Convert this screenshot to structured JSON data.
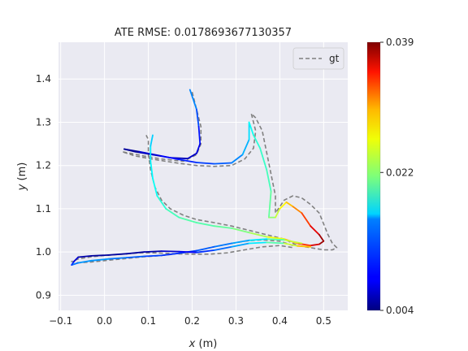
{
  "chart_data": {
    "type": "line",
    "title": "ATE RMSE: 0.0178693677130357",
    "xlabel": "x",
    "xlabel_unit": " (m)",
    "ylabel": "y",
    "ylabel_unit": " (m)",
    "xlim": [
      -0.105,
      0.555
    ],
    "ylim": [
      0.865,
      1.485
    ],
    "xticks": [
      -0.1,
      0.0,
      0.1,
      0.2,
      0.3,
      0.4,
      0.5
    ],
    "xtick_labels": [
      "−0.1",
      "0.0",
      "0.1",
      "0.2",
      "0.3",
      "0.4",
      "0.5"
    ],
    "yticks": [
      0.9,
      1.0,
      1.1,
      1.2,
      1.3,
      1.4
    ],
    "ytick_labels": [
      "0.9",
      "1.0",
      "1.1",
      "1.2",
      "1.3",
      "1.4"
    ],
    "grid": true,
    "legend": {
      "placement": "top-right",
      "entries": [
        "gt"
      ]
    },
    "colorbar": {
      "min": 0.004,
      "max": 0.039,
      "tick_labels": [
        "0.039",
        "0.022",
        "0.004"
      ],
      "tick_values": [
        0.039,
        0.022,
        0.004
      ],
      "colormap": "jet"
    },
    "colors": {
      "background": "#eaeaf2",
      "grid": "#ffffff",
      "gt": "#808080"
    },
    "series": [
      {
        "name": "gt",
        "style": "dashed",
        "points": [
          [
            0.2,
            1.37
          ],
          [
            0.21,
            1.33
          ],
          [
            0.22,
            1.29
          ],
          [
            0.22,
            1.25
          ],
          [
            0.21,
            1.225
          ],
          [
            0.18,
            1.21
          ],
          [
            0.13,
            1.215
          ],
          [
            0.09,
            1.222
          ],
          [
            0.06,
            1.228
          ],
          [
            0.04,
            1.232
          ],
          [
            0.07,
            1.222
          ],
          [
            0.12,
            1.213
          ],
          [
            0.17,
            1.205
          ],
          [
            0.21,
            1.2
          ],
          [
            0.25,
            1.198
          ],
          [
            0.29,
            1.2
          ],
          [
            0.32,
            1.215
          ],
          [
            0.34,
            1.24
          ],
          [
            0.345,
            1.28
          ],
          [
            0.335,
            1.32
          ],
          [
            0.345,
            1.31
          ],
          [
            0.36,
            1.28
          ],
          [
            0.37,
            1.23
          ],
          [
            0.38,
            1.18
          ],
          [
            0.39,
            1.13
          ],
          [
            0.39,
            1.09
          ],
          [
            0.4,
            1.105
          ],
          [
            0.41,
            1.12
          ],
          [
            0.43,
            1.13
          ],
          [
            0.45,
            1.125
          ],
          [
            0.47,
            1.11
          ],
          [
            0.49,
            1.09
          ],
          [
            0.5,
            1.065
          ],
          [
            0.51,
            1.04
          ],
          [
            0.52,
            1.02
          ],
          [
            0.53,
            1.01
          ],
          [
            0.52,
            1.005
          ],
          [
            0.5,
            1.005
          ],
          [
            0.47,
            1.01
          ],
          [
            0.44,
            1.015
          ],
          [
            0.41,
            1.03
          ],
          [
            0.37,
            1.04
          ],
          [
            0.33,
            1.05
          ],
          [
            0.29,
            1.06
          ],
          [
            0.25,
            1.068
          ],
          [
            0.21,
            1.075
          ],
          [
            0.18,
            1.085
          ],
          [
            0.15,
            1.1
          ],
          [
            0.13,
            1.12
          ],
          [
            0.115,
            1.15
          ],
          [
            0.105,
            1.19
          ],
          [
            0.1,
            1.225
          ],
          [
            0.1,
            1.26
          ],
          [
            0.095,
            1.27
          ]
        ]
      },
      {
        "name": "gt-lower",
        "style": "dashed",
        "points": [
          [
            0.43,
            1.015
          ],
          [
            0.4,
            1.025
          ],
          [
            0.36,
            1.028
          ],
          [
            0.32,
            1.025
          ],
          [
            0.28,
            1.018
          ],
          [
            0.24,
            1.01
          ],
          [
            0.2,
            1.0
          ],
          [
            0.17,
            0.997
          ],
          [
            0.15,
            0.994
          ],
          [
            0.12,
            0.991
          ],
          [
            0.09,
            0.989
          ],
          [
            0.06,
            0.986
          ],
          [
            0.03,
            0.983
          ],
          [
            0.0,
            0.98
          ],
          [
            -0.03,
            0.977
          ],
          [
            -0.06,
            0.975
          ],
          [
            -0.075,
            0.978
          ],
          [
            -0.06,
            0.984
          ],
          [
            -0.03,
            0.989
          ],
          [
            0.0,
            0.992
          ],
          [
            0.04,
            0.995
          ],
          [
            0.08,
            0.998
          ],
          [
            0.12,
            0.998
          ],
          [
            0.16,
            0.996
          ],
          [
            0.2,
            0.995
          ],
          [
            0.24,
            0.995
          ],
          [
            0.28,
            0.998
          ],
          [
            0.32,
            1.005
          ],
          [
            0.36,
            1.012
          ],
          [
            0.4,
            1.015
          ],
          [
            0.43,
            1.01
          ]
        ]
      },
      {
        "name": "estimate",
        "style": "colormap",
        "points": [
          [
            0.195,
            1.375,
            0.014
          ],
          [
            0.21,
            1.33,
            0.012
          ],
          [
            0.215,
            1.29,
            0.01
          ],
          [
            0.218,
            1.25,
            0.008
          ],
          [
            0.21,
            1.228,
            0.007
          ],
          [
            0.19,
            1.216,
            0.006
          ],
          [
            0.15,
            1.218,
            0.006
          ],
          [
            0.11,
            1.225,
            0.005
          ],
          [
            0.07,
            1.232,
            0.005
          ],
          [
            0.045,
            1.238,
            0.004
          ],
          [
            0.08,
            1.232,
            0.006
          ],
          [
            0.13,
            1.222,
            0.008
          ],
          [
            0.17,
            1.214,
            0.009
          ],
          [
            0.21,
            1.207,
            0.01
          ],
          [
            0.25,
            1.204,
            0.011
          ],
          [
            0.29,
            1.206,
            0.012
          ],
          [
            0.315,
            1.225,
            0.014
          ],
          [
            0.33,
            1.26,
            0.015
          ],
          [
            0.33,
            1.3,
            0.017
          ],
          [
            0.34,
            1.27,
            0.018
          ],
          [
            0.355,
            1.24,
            0.019
          ],
          [
            0.37,
            1.19,
            0.019
          ],
          [
            0.38,
            1.14,
            0.02
          ],
          [
            0.375,
            1.08,
            0.021
          ],
          [
            0.39,
            1.08,
            0.023
          ],
          [
            0.4,
            1.1,
            0.025
          ],
          [
            0.415,
            1.115,
            0.027
          ],
          [
            0.43,
            1.105,
            0.029
          ],
          [
            0.45,
            1.09,
            0.031
          ],
          [
            0.47,
            1.06,
            0.034
          ],
          [
            0.49,
            1.04,
            0.037
          ],
          [
            0.5,
            1.025,
            0.039
          ],
          [
            0.49,
            1.018,
            0.037
          ],
          [
            0.47,
            1.015,
            0.035
          ],
          [
            0.44,
            1.02,
            0.031
          ],
          [
            0.41,
            1.03,
            0.027
          ],
          [
            0.37,
            1.035,
            0.024
          ],
          [
            0.33,
            1.045,
            0.022
          ],
          [
            0.29,
            1.055,
            0.021
          ],
          [
            0.25,
            1.06,
            0.02
          ],
          [
            0.21,
            1.068,
            0.02
          ],
          [
            0.17,
            1.08,
            0.02
          ],
          [
            0.14,
            1.1,
            0.019
          ],
          [
            0.12,
            1.13,
            0.018
          ],
          [
            0.11,
            1.17,
            0.017
          ],
          [
            0.105,
            1.21,
            0.017
          ],
          [
            0.105,
            1.245,
            0.016
          ],
          [
            0.11,
            1.27,
            0.015
          ]
        ]
      },
      {
        "name": "estimate-lower",
        "style": "colormap",
        "points": [
          [
            0.45,
            1.02,
            0.026
          ],
          [
            0.41,
            1.028,
            0.022
          ],
          [
            0.37,
            1.03,
            0.018
          ],
          [
            0.33,
            1.027,
            0.015
          ],
          [
            0.29,
            1.02,
            0.013
          ],
          [
            0.25,
            1.012,
            0.012
          ],
          [
            0.21,
            1.003,
            0.011
          ],
          [
            0.17,
            0.997,
            0.01
          ],
          [
            0.13,
            0.992,
            0.01
          ],
          [
            0.09,
            0.99,
            0.011
          ],
          [
            0.05,
            0.987,
            0.012
          ],
          [
            0.01,
            0.984,
            0.013
          ],
          [
            -0.03,
            0.98,
            0.014
          ],
          [
            -0.06,
            0.975,
            0.013
          ],
          [
            -0.075,
            0.97,
            0.012
          ],
          [
            -0.07,
            0.978,
            0.008
          ],
          [
            -0.06,
            0.988,
            0.006
          ],
          [
            -0.03,
            0.991,
            0.005
          ],
          [
            0.01,
            0.993,
            0.005
          ],
          [
            0.05,
            0.996,
            0.005
          ],
          [
            0.09,
            1.0,
            0.005
          ],
          [
            0.13,
            1.002,
            0.006
          ],
          [
            0.17,
            1.001,
            0.007
          ],
          [
            0.21,
            0.999,
            0.009
          ],
          [
            0.25,
            1.004,
            0.011
          ],
          [
            0.29,
            1.012,
            0.013
          ],
          [
            0.33,
            1.02,
            0.015
          ],
          [
            0.37,
            1.022,
            0.018
          ],
          [
            0.41,
            1.02,
            0.022
          ],
          [
            0.44,
            1.014,
            0.026
          ],
          [
            0.47,
            1.012,
            0.03
          ]
        ]
      }
    ]
  }
}
